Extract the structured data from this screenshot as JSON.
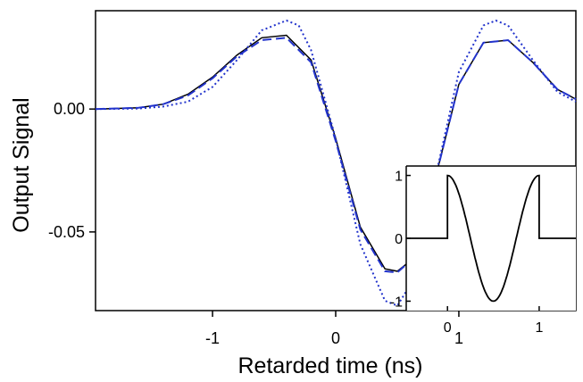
{
  "chart_data": [
    {
      "type": "line",
      "xlabel": "Retarded time (ns)",
      "ylabel": "Output Signal",
      "xlim": [
        -1.95,
        1.95
      ],
      "ylim": [
        -0.082,
        0.04
      ],
      "x_ticks": [
        -1,
        0,
        1
      ],
      "x_tick_labels": [
        "-1",
        "0",
        "1"
      ],
      "y_ticks": [
        0.0,
        -0.05
      ],
      "y_tick_labels": [
        "0.00",
        "-0.05"
      ],
      "grid": false,
      "series": [
        {
          "style": "solid",
          "color": "#000000",
          "x": [
            -1.95,
            -1.6,
            -1.4,
            -1.2,
            -1.0,
            -0.8,
            -0.6,
            -0.4,
            -0.2,
            0.0,
            0.2,
            0.4,
            0.5,
            0.6,
            0.8,
            1.0,
            1.2,
            1.4,
            1.6,
            1.8,
            1.95
          ],
          "y": [
            0.0,
            0.0005,
            0.002,
            0.006,
            0.013,
            0.022,
            0.029,
            0.03,
            0.02,
            -0.012,
            -0.048,
            -0.065,
            -0.066,
            -0.062,
            -0.03,
            0.01,
            0.027,
            0.028,
            0.019,
            0.008,
            0.004
          ]
        },
        {
          "style": "dashed",
          "color": "#2233cc",
          "x": [
            -1.95,
            -1.6,
            -1.4,
            -1.2,
            -1.0,
            -0.8,
            -0.6,
            -0.4,
            -0.2,
            0.0,
            0.2,
            0.4,
            0.5,
            0.6,
            0.8,
            1.0,
            1.2,
            1.4,
            1.6,
            1.8,
            1.95
          ],
          "y": [
            0.0,
            0.0005,
            0.002,
            0.0055,
            0.0125,
            0.0215,
            0.028,
            0.029,
            0.019,
            -0.013,
            -0.049,
            -0.066,
            -0.0665,
            -0.062,
            -0.03,
            0.01,
            0.027,
            0.028,
            0.019,
            0.008,
            0.004
          ]
        },
        {
          "style": "dotted",
          "color": "#2233cc",
          "x": [
            -1.95,
            -1.6,
            -1.4,
            -1.2,
            -1.0,
            -0.8,
            -0.6,
            -0.4,
            -0.3,
            -0.2,
            0.0,
            0.2,
            0.4,
            0.5,
            0.6,
            0.8,
            1.0,
            1.2,
            1.3,
            1.4,
            1.6,
            1.8,
            1.95
          ],
          "y": [
            0.0,
            0.0002,
            0.001,
            0.003,
            0.009,
            0.02,
            0.032,
            0.036,
            0.034,
            0.024,
            -0.012,
            -0.055,
            -0.078,
            -0.08,
            -0.072,
            -0.03,
            0.015,
            0.034,
            0.036,
            0.034,
            0.02,
            0.007,
            0.003
          ]
        }
      ]
    },
    {
      "type": "line",
      "role": "inset",
      "xlim": [
        -0.45,
        1.4
      ],
      "ylim": [
        -1.15,
        1.15
      ],
      "x_ticks": [
        0,
        1
      ],
      "x_tick_labels": [
        "0",
        "1"
      ],
      "y_ticks": [
        1,
        0,
        -1
      ],
      "y_tick_labels": [
        "1",
        "0",
        "-1"
      ],
      "series": [
        {
          "style": "solid",
          "color": "#000000",
          "function": "rectangular-windowed cosine: 0 outside [0,1], cos(2*pi*t) inside",
          "x": [
            -0.45,
            0.0,
            0.0,
            0.1,
            0.2,
            0.3,
            0.4,
            0.5,
            0.6,
            0.7,
            0.8,
            0.9,
            1.0,
            1.0,
            1.4
          ],
          "y": [
            0.0,
            0.0,
            1.0,
            0.81,
            0.31,
            -0.31,
            -0.81,
            -1.0,
            -0.81,
            -0.31,
            0.31,
            0.81,
            1.0,
            0.0,
            0.0
          ]
        }
      ]
    }
  ]
}
